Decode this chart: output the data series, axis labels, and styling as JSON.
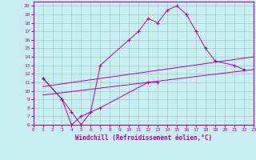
{
  "xlabel": "Windchill (Refroidissement éolien,°C)",
  "background_color": "#c8eef0",
  "grid_color": "#a0b8c0",
  "line_color": "#aa00aa",
  "xlim": [
    0,
    23
  ],
  "ylim": [
    6,
    20.5
  ],
  "xticks": [
    0,
    1,
    2,
    3,
    4,
    5,
    6,
    7,
    8,
    9,
    10,
    11,
    12,
    13,
    14,
    15,
    16,
    17,
    18,
    19,
    20,
    21,
    22,
    23
  ],
  "yticks": [
    6,
    7,
    8,
    9,
    10,
    11,
    12,
    13,
    14,
    15,
    16,
    17,
    18,
    19,
    20
  ],
  "line1_x": [
    1,
    3,
    4,
    5,
    6,
    7,
    12,
    13
  ],
  "line1_y": [
    11.5,
    9.0,
    7.5,
    6.0,
    7.5,
    8.0,
    11.0,
    11.0
  ],
  "line2_x": [
    1,
    3,
    4,
    5,
    6,
    7,
    10,
    11,
    12,
    13,
    14,
    15,
    16,
    17,
    18,
    19,
    21,
    22
  ],
  "line2_y": [
    11.5,
    9.0,
    6.0,
    7.0,
    7.5,
    13.0,
    16.0,
    17.0,
    18.5,
    18.0,
    19.5,
    20.0,
    19.0,
    17.0,
    15.0,
    13.5,
    13.0,
    12.5
  ],
  "line3_x": [
    1,
    23
  ],
  "line3_y": [
    9.5,
    12.5
  ],
  "line4_x": [
    1,
    23
  ],
  "line4_y": [
    10.5,
    14.0
  ],
  "xlabel_fontsize": 5.5,
  "tick_fontsize": 4.5,
  "linewidth": 0.7,
  "marker_size": 3
}
